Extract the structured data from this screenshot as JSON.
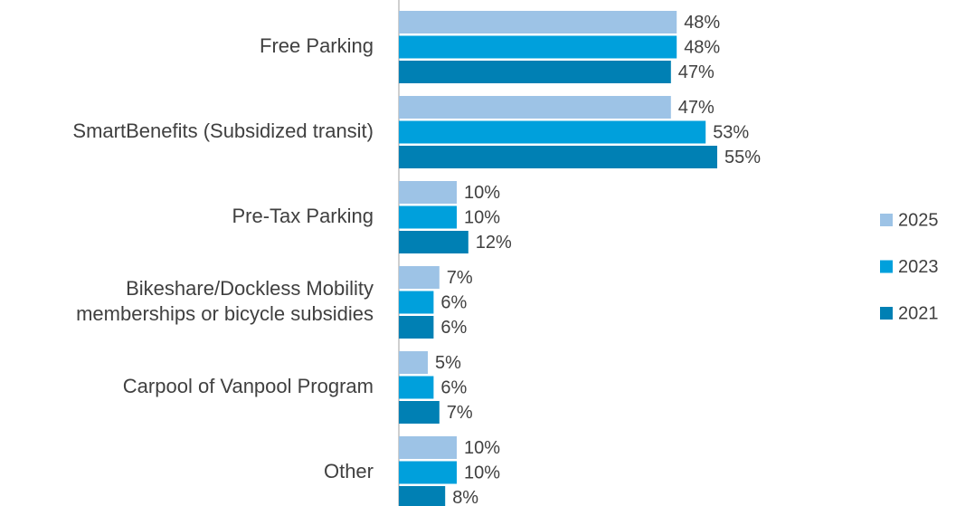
{
  "chart_data": {
    "type": "bar",
    "orientation": "horizontal",
    "categories": [
      "Free Parking",
      "SmartBenefits (Subsidized transit)",
      "Pre-Tax Parking",
      "Bikeshare/Dockless Mobility\nmemberships or bicycle subsidies",
      "Carpool of Vanpool Program",
      "Other"
    ],
    "series": [
      {
        "name": "2025",
        "color": "#9dc3e6",
        "values": [
          48,
          47,
          10,
          7,
          5,
          10
        ],
        "value_labels": [
          "48%",
          "47%",
          "10%",
          "7%",
          "5%",
          "10%"
        ]
      },
      {
        "name": "2023",
        "color": "#00a0dc",
        "values": [
          48,
          53,
          10,
          6,
          6,
          10
        ],
        "value_labels": [
          "48%",
          "53%",
          "10%",
          "6%",
          "6%",
          "10%"
        ]
      },
      {
        "name": "2021",
        "color": "#0080b4",
        "values": [
          47,
          55,
          12,
          6,
          7,
          8
        ],
        "value_labels": [
          "47%",
          "55%",
          "12%",
          "6%",
          "7%",
          "8%"
        ]
      }
    ],
    "legend": "right"
  }
}
